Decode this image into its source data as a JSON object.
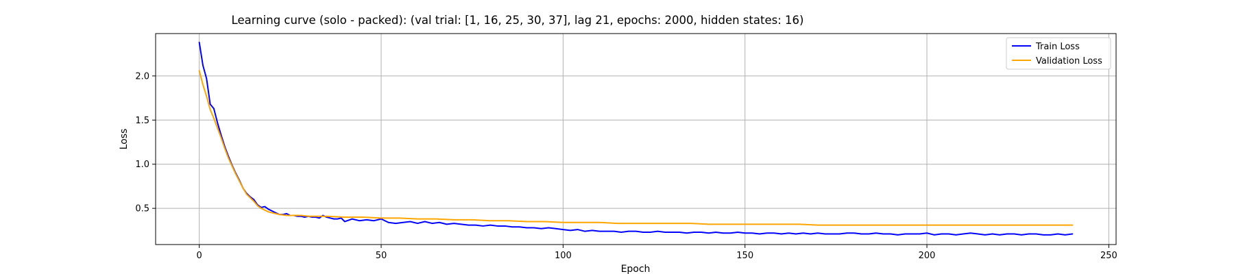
{
  "chart_data": {
    "type": "line",
    "title": "Learning curve (solo - packed): (val trial: [1, 16, 25, 30, 37], lag 21, epochs: 2000, hidden states: 16)",
    "xlabel": "Epoch",
    "ylabel": "Loss",
    "xlim": [
      -12,
      252
    ],
    "ylim": [
      0.09,
      2.48
    ],
    "x_ticks": [
      0,
      50,
      100,
      150,
      200,
      250
    ],
    "y_ticks": [
      0.5,
      1.0,
      1.5,
      2.0
    ],
    "grid": true,
    "legend_position": "top-right",
    "series": [
      {
        "name": "Train Loss",
        "color": "#0000ff",
        "x": [
          0,
          1,
          2,
          3,
          4,
          5,
          6,
          7,
          8,
          9,
          10,
          11,
          12,
          13,
          14,
          15,
          16,
          17,
          18,
          19,
          20,
          21,
          22,
          23,
          24,
          25,
          26,
          27,
          28,
          29,
          30,
          31,
          32,
          33,
          34,
          35,
          36,
          37,
          38,
          39,
          40,
          42,
          44,
          46,
          48,
          50,
          52,
          54,
          56,
          58,
          60,
          62,
          64,
          66,
          68,
          70,
          72,
          74,
          76,
          78,
          80,
          82,
          84,
          86,
          88,
          90,
          92,
          94,
          96,
          98,
          100,
          102,
          104,
          106,
          108,
          110,
          112,
          114,
          116,
          118,
          120,
          122,
          124,
          126,
          128,
          130,
          132,
          134,
          136,
          138,
          140,
          142,
          144,
          146,
          148,
          150,
          152,
          154,
          156,
          158,
          160,
          162,
          164,
          166,
          168,
          170,
          172,
          174,
          176,
          178,
          180,
          182,
          184,
          186,
          188,
          190,
          192,
          194,
          196,
          198,
          200,
          202,
          204,
          206,
          208,
          210,
          212,
          214,
          216,
          218,
          220,
          222,
          224,
          226,
          228,
          230,
          232,
          234,
          236,
          238,
          240
        ],
        "y": [
          2.38,
          2.12,
          1.97,
          1.68,
          1.63,
          1.47,
          1.33,
          1.2,
          1.09,
          0.99,
          0.9,
          0.82,
          0.73,
          0.67,
          0.63,
          0.6,
          0.54,
          0.51,
          0.52,
          0.49,
          0.47,
          0.45,
          0.43,
          0.43,
          0.44,
          0.42,
          0.42,
          0.41,
          0.41,
          0.4,
          0.41,
          0.4,
          0.4,
          0.39,
          0.42,
          0.4,
          0.39,
          0.38,
          0.38,
          0.39,
          0.35,
          0.38,
          0.36,
          0.37,
          0.36,
          0.38,
          0.34,
          0.33,
          0.34,
          0.35,
          0.33,
          0.35,
          0.33,
          0.34,
          0.32,
          0.33,
          0.32,
          0.31,
          0.31,
          0.3,
          0.31,
          0.3,
          0.3,
          0.29,
          0.29,
          0.28,
          0.28,
          0.27,
          0.28,
          0.27,
          0.26,
          0.25,
          0.26,
          0.24,
          0.25,
          0.24,
          0.24,
          0.24,
          0.23,
          0.24,
          0.24,
          0.23,
          0.23,
          0.24,
          0.23,
          0.23,
          0.23,
          0.22,
          0.23,
          0.23,
          0.22,
          0.23,
          0.22,
          0.22,
          0.23,
          0.22,
          0.22,
          0.21,
          0.22,
          0.22,
          0.21,
          0.22,
          0.21,
          0.22,
          0.21,
          0.22,
          0.21,
          0.21,
          0.21,
          0.22,
          0.22,
          0.21,
          0.21,
          0.22,
          0.21,
          0.21,
          0.2,
          0.21,
          0.21,
          0.21,
          0.22,
          0.2,
          0.21,
          0.21,
          0.2,
          0.21,
          0.22,
          0.21,
          0.2,
          0.21,
          0.2,
          0.21,
          0.21,
          0.2,
          0.21,
          0.21,
          0.2,
          0.2,
          0.21,
          0.2,
          0.21
        ]
      },
      {
        "name": "Validation Loss",
        "color": "#ffa500",
        "x": [
          0,
          1,
          2,
          3,
          4,
          5,
          6,
          7,
          8,
          9,
          10,
          11,
          12,
          13,
          14,
          15,
          16,
          17,
          18,
          19,
          20,
          22,
          24,
          26,
          28,
          30,
          35,
          40,
          45,
          50,
          55,
          60,
          65,
          70,
          75,
          80,
          85,
          90,
          95,
          100,
          105,
          110,
          115,
          120,
          125,
          130,
          135,
          140,
          145,
          150,
          155,
          160,
          165,
          170,
          175,
          180,
          185,
          190,
          195,
          200,
          205,
          210,
          215,
          220,
          225,
          230,
          235,
          240
        ],
        "y": [
          2.06,
          1.9,
          1.77,
          1.62,
          1.52,
          1.41,
          1.3,
          1.18,
          1.07,
          0.98,
          0.89,
          0.81,
          0.73,
          0.66,
          0.62,
          0.58,
          0.53,
          0.5,
          0.48,
          0.46,
          0.45,
          0.43,
          0.42,
          0.42,
          0.42,
          0.41,
          0.41,
          0.4,
          0.4,
          0.39,
          0.39,
          0.38,
          0.38,
          0.37,
          0.37,
          0.36,
          0.36,
          0.35,
          0.35,
          0.34,
          0.34,
          0.34,
          0.33,
          0.33,
          0.33,
          0.33,
          0.33,
          0.32,
          0.32,
          0.32,
          0.32,
          0.32,
          0.32,
          0.31,
          0.31,
          0.31,
          0.31,
          0.31,
          0.31,
          0.31,
          0.31,
          0.31,
          0.31,
          0.31,
          0.31,
          0.31,
          0.31,
          0.31
        ]
      }
    ]
  }
}
